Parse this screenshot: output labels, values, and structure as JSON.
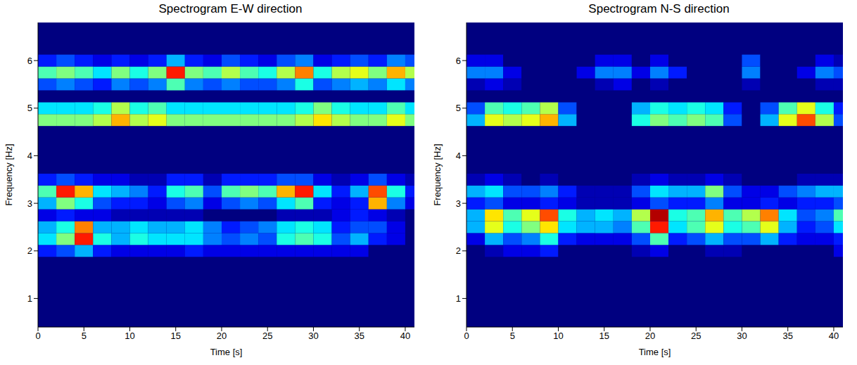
{
  "chart_data": [
    {
      "type": "heatmap",
      "title": "Spectrogram E-W direction",
      "x_label": "Time [s]",
      "y_label": "Frequency [Hz]",
      "xlim": [
        0,
        41
      ],
      "ylim": [
        0.4,
        6.8
      ],
      "xticks": [
        0,
        5,
        10,
        15,
        20,
        25,
        30,
        35,
        40
      ],
      "yticks": [
        1,
        2,
        3,
        4,
        5,
        6
      ],
      "color_range": [
        0,
        1
      ],
      "time_edges": [
        0,
        2,
        4,
        6,
        8,
        10,
        12,
        14,
        16,
        18,
        20,
        22,
        24,
        26,
        28,
        30,
        32,
        34,
        36,
        38,
        40,
        42
      ],
      "freq_edges": [
        1.875,
        2.125,
        2.375,
        2.625,
        2.875,
        3.125,
        3.375,
        3.625,
        3.875,
        4.125,
        4.375,
        4.625,
        4.875,
        5.125,
        5.375,
        5.625,
        5.875,
        6.125
      ],
      "values": [
        [
          0.15,
          0.2,
          0.3,
          0.15,
          0.1,
          0.1,
          0.1,
          0.1,
          0.15,
          0.1,
          0.1,
          0.1,
          0.1,
          0.1,
          0.1,
          0.1,
          0.1,
          0.1,
          0,
          0,
          0
        ],
        [
          0.35,
          0.5,
          0.85,
          0.4,
          0.3,
          0.4,
          0.35,
          0.35,
          0.35,
          0.25,
          0.2,
          0.25,
          0.2,
          0.4,
          0.45,
          0.4,
          0.2,
          0.3,
          0.15,
          0.1,
          0
        ],
        [
          0.3,
          0.4,
          0.75,
          0.3,
          0.3,
          0.35,
          0.3,
          0.3,
          0.35,
          0.25,
          0.15,
          0.2,
          0.25,
          0.35,
          0.4,
          0.35,
          0.15,
          0.2,
          0.2,
          0.1,
          0
        ],
        [
          0.1,
          0.15,
          0.1,
          0.1,
          0.05,
          0.05,
          0.05,
          0.05,
          0.05,
          0,
          0,
          0,
          0,
          0.05,
          0.05,
          0.05,
          0.1,
          0.15,
          0.1,
          0.05,
          0
        ],
        [
          0.3,
          0.5,
          0.4,
          0.2,
          0.15,
          0.15,
          0.1,
          0.2,
          0.25,
          0.1,
          0.2,
          0.25,
          0.2,
          0.35,
          0.45,
          0.15,
          0.1,
          0.15,
          0.7,
          0.25,
          0.1
        ],
        [
          0.45,
          0.85,
          0.7,
          0.35,
          0.3,
          0.25,
          0.15,
          0.4,
          0.45,
          0.2,
          0.45,
          0.5,
          0.45,
          0.7,
          0.85,
          0.35,
          0.15,
          0.3,
          0.8,
          0.4,
          0.15
        ],
        [
          0.15,
          0.2,
          0.15,
          0.1,
          0.1,
          0.05,
          0.05,
          0.15,
          0.15,
          0.05,
          0.15,
          0.15,
          0.15,
          0.2,
          0.2,
          0.1,
          0.05,
          0.1,
          0.2,
          0.1,
          0.05
        ],
        [
          0,
          0,
          0,
          0,
          0,
          0,
          0,
          0,
          0,
          0,
          0,
          0,
          0,
          0,
          0,
          0,
          0,
          0,
          0,
          0,
          0
        ],
        [
          0,
          0,
          0,
          0,
          0,
          0,
          0,
          0,
          0,
          0,
          0,
          0,
          0,
          0,
          0,
          0,
          0,
          0,
          0,
          0,
          0
        ],
        [
          0,
          0,
          0,
          0,
          0,
          0,
          0,
          0,
          0,
          0,
          0,
          0,
          0,
          0,
          0,
          0,
          0,
          0,
          0,
          0,
          0
        ],
        [
          0,
          0,
          0,
          0,
          0,
          0,
          0,
          0,
          0,
          0,
          0,
          0,
          0,
          0,
          0,
          0,
          0,
          0,
          0,
          0,
          0
        ],
        [
          0.5,
          0.5,
          0.5,
          0.55,
          0.7,
          0.55,
          0.6,
          0.5,
          0.5,
          0.5,
          0.5,
          0.5,
          0.5,
          0.5,
          0.55,
          0.65,
          0.55,
          0.5,
          0.5,
          0.6,
          0.5
        ],
        [
          0.35,
          0.35,
          0.35,
          0.4,
          0.55,
          0.4,
          0.45,
          0.35,
          0.35,
          0.35,
          0.35,
          0.35,
          0.35,
          0.35,
          0.4,
          0.5,
          0.4,
          0.35,
          0.35,
          0.45,
          0.35
        ],
        [
          0,
          0,
          0,
          0,
          0,
          0,
          0,
          0,
          0,
          0,
          0,
          0,
          0,
          0,
          0,
          0,
          0,
          0,
          0,
          0,
          0
        ],
        [
          0.2,
          0.25,
          0.2,
          0.15,
          0.25,
          0.2,
          0.25,
          0.45,
          0.25,
          0.2,
          0.25,
          0.2,
          0.2,
          0.25,
          0.4,
          0.2,
          0.25,
          0.3,
          0.25,
          0.35,
          0.25
        ],
        [
          0.45,
          0.5,
          0.45,
          0.35,
          0.5,
          0.4,
          0.5,
          0.85,
          0.5,
          0.45,
          0.55,
          0.45,
          0.4,
          0.55,
          0.75,
          0.4,
          0.55,
          0.6,
          0.5,
          0.7,
          0.55
        ],
        [
          0.15,
          0.2,
          0.15,
          0.1,
          0.15,
          0.1,
          0.15,
          0.3,
          0.15,
          0.1,
          0.2,
          0.15,
          0.1,
          0.2,
          0.25,
          0.1,
          0.15,
          0.2,
          0.15,
          0.25,
          0.2
        ]
      ]
    },
    {
      "type": "heatmap",
      "title": "Spectrogram N-S direction",
      "x_label": "Time [s]",
      "y_label": "Frequency [Hz]",
      "xlim": [
        0,
        41
      ],
      "ylim": [
        0.4,
        6.8
      ],
      "xticks": [
        0,
        5,
        10,
        15,
        20,
        25,
        30,
        35,
        40
      ],
      "yticks": [
        1,
        2,
        3,
        4,
        5,
        6
      ],
      "color_range": [
        0,
        1
      ],
      "time_edges": [
        0,
        2,
        4,
        6,
        8,
        10,
        12,
        14,
        16,
        18,
        20,
        22,
        24,
        26,
        28,
        30,
        32,
        34,
        36,
        38,
        40,
        42
      ],
      "freq_edges": [
        1.875,
        2.125,
        2.375,
        2.625,
        2.875,
        3.125,
        3.375,
        3.625,
        3.875,
        4.125,
        4.375,
        4.625,
        4.875,
        5.125,
        5.375,
        5.625,
        5.875,
        6.125
      ],
      "values": [
        [
          0,
          0.05,
          0.1,
          0.1,
          0.15,
          0,
          0,
          0,
          0,
          0.05,
          0.1,
          0,
          0,
          0.05,
          0.05,
          0,
          0,
          0,
          0,
          0,
          0.1
        ],
        [
          0.1,
          0.3,
          0.2,
          0.25,
          0.4,
          0.15,
          0.1,
          0.1,
          0.1,
          0.2,
          0.45,
          0.15,
          0.2,
          0.3,
          0.2,
          0.2,
          0.3,
          0.15,
          0.1,
          0.1,
          0.15
        ],
        [
          0.3,
          0.6,
          0.4,
          0.5,
          0.65,
          0.35,
          0.3,
          0.3,
          0.25,
          0.45,
          0.85,
          0.35,
          0.45,
          0.6,
          0.4,
          0.45,
          0.6,
          0.3,
          0.15,
          0.2,
          0.35
        ],
        [
          0.3,
          0.65,
          0.45,
          0.6,
          0.8,
          0.4,
          0.3,
          0.35,
          0.3,
          0.55,
          0.95,
          0.4,
          0.45,
          0.7,
          0.45,
          0.55,
          0.75,
          0.35,
          0.2,
          0.25,
          0.45
        ],
        [
          0.15,
          0.2,
          0.1,
          0.1,
          0.15,
          0.1,
          0.05,
          0.05,
          0.05,
          0.1,
          0.2,
          0.15,
          0.15,
          0.25,
          0.1,
          0.1,
          0.15,
          0.1,
          0.15,
          0.15,
          0.2
        ],
        [
          0.3,
          0.35,
          0.2,
          0.2,
          0.25,
          0.15,
          0.05,
          0.05,
          0.05,
          0.2,
          0.35,
          0.3,
          0.3,
          0.5,
          0.2,
          0.1,
          0.1,
          0.2,
          0.25,
          0.3,
          0.3
        ],
        [
          0.05,
          0.1,
          0.05,
          0,
          0.05,
          0,
          0,
          0,
          0,
          0.05,
          0.1,
          0.05,
          0.05,
          0.1,
          0.05,
          0,
          0,
          0,
          0.05,
          0.05,
          0.05
        ],
        [
          0,
          0,
          0,
          0,
          0,
          0,
          0,
          0,
          0,
          0,
          0,
          0,
          0,
          0,
          0,
          0,
          0,
          0,
          0,
          0,
          0
        ],
        [
          0,
          0,
          0,
          0,
          0,
          0,
          0,
          0,
          0,
          0,
          0,
          0,
          0,
          0,
          0,
          0,
          0,
          0,
          0,
          0,
          0
        ],
        [
          0,
          0,
          0,
          0,
          0,
          0,
          0,
          0,
          0,
          0,
          0,
          0,
          0,
          0,
          0,
          0,
          0,
          0,
          0,
          0,
          0
        ],
        [
          0,
          0,
          0,
          0,
          0,
          0,
          0,
          0,
          0,
          0,
          0,
          0,
          0,
          0,
          0,
          0,
          0,
          0,
          0,
          0,
          0
        ],
        [
          0.3,
          0.6,
          0.55,
          0.6,
          0.7,
          0.3,
          0,
          0,
          0,
          0.4,
          0.5,
          0.45,
          0.5,
          0.45,
          0.2,
          0,
          0.3,
          0.6,
          0.8,
          0.55,
          0.2
        ],
        [
          0.2,
          0.45,
          0.4,
          0.45,
          0.55,
          0.2,
          0,
          0,
          0,
          0.3,
          0.4,
          0.35,
          0.4,
          0.35,
          0.15,
          0,
          0.2,
          0.45,
          0.6,
          0.4,
          0.15
        ],
        [
          0,
          0,
          0,
          0,
          0,
          0,
          0,
          0,
          0,
          0,
          0,
          0,
          0,
          0,
          0,
          0,
          0,
          0,
          0,
          0,
          0
        ],
        [
          0.05,
          0.1,
          0.05,
          0,
          0,
          0,
          0,
          0.05,
          0.1,
          0,
          0.05,
          0,
          0,
          0,
          0,
          0.05,
          0,
          0,
          0,
          0.05,
          0.05
        ],
        [
          0.25,
          0.25,
          0.1,
          0,
          0,
          0,
          0.1,
          0.25,
          0.25,
          0.1,
          0.25,
          0.15,
          0,
          0,
          0,
          0.25,
          0,
          0,
          0.1,
          0.25,
          0.2
        ],
        [
          0.1,
          0.1,
          0,
          0,
          0,
          0,
          0,
          0.1,
          0.1,
          0,
          0.1,
          0,
          0,
          0,
          0,
          0.2,
          0,
          0,
          0,
          0.1,
          0.05
        ]
      ]
    }
  ]
}
